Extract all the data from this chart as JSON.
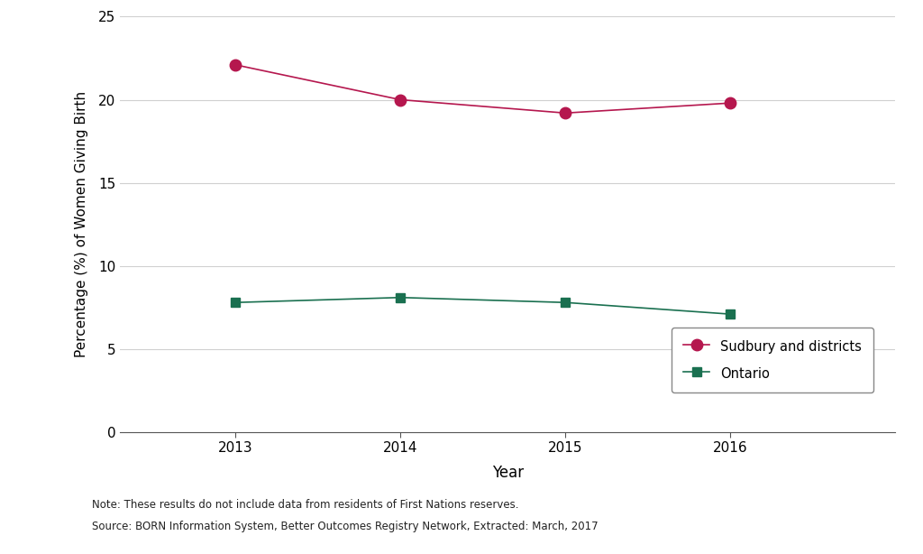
{
  "years": [
    2013,
    2014,
    2015,
    2016
  ],
  "sudbury_values": [
    22.1,
    20.0,
    19.2,
    19.8
  ],
  "ontario_values": [
    7.8,
    8.1,
    7.8,
    7.1
  ],
  "sudbury_color": "#b5174e",
  "ontario_color": "#1a7050",
  "sudbury_label": "Sudbury and districts",
  "ontario_label": "Ontario",
  "ylabel": "Percentage (%) of Women Giving Birth",
  "xlabel": "Year",
  "ylim": [
    0,
    25
  ],
  "yticks": [
    0,
    5,
    10,
    15,
    20,
    25
  ],
  "grid_color": "#d0d0d0",
  "note_line1": "Note: These results do not include data from residents of First Nations reserves.",
  "note_line2": "Source: BORN Information System, Better Outcomes Registry Network, Extracted: March, 2017",
  "background_color": "#ffffff",
  "sudbury_markersize": 9,
  "ontario_markersize": 7,
  "linewidth": 1.2
}
